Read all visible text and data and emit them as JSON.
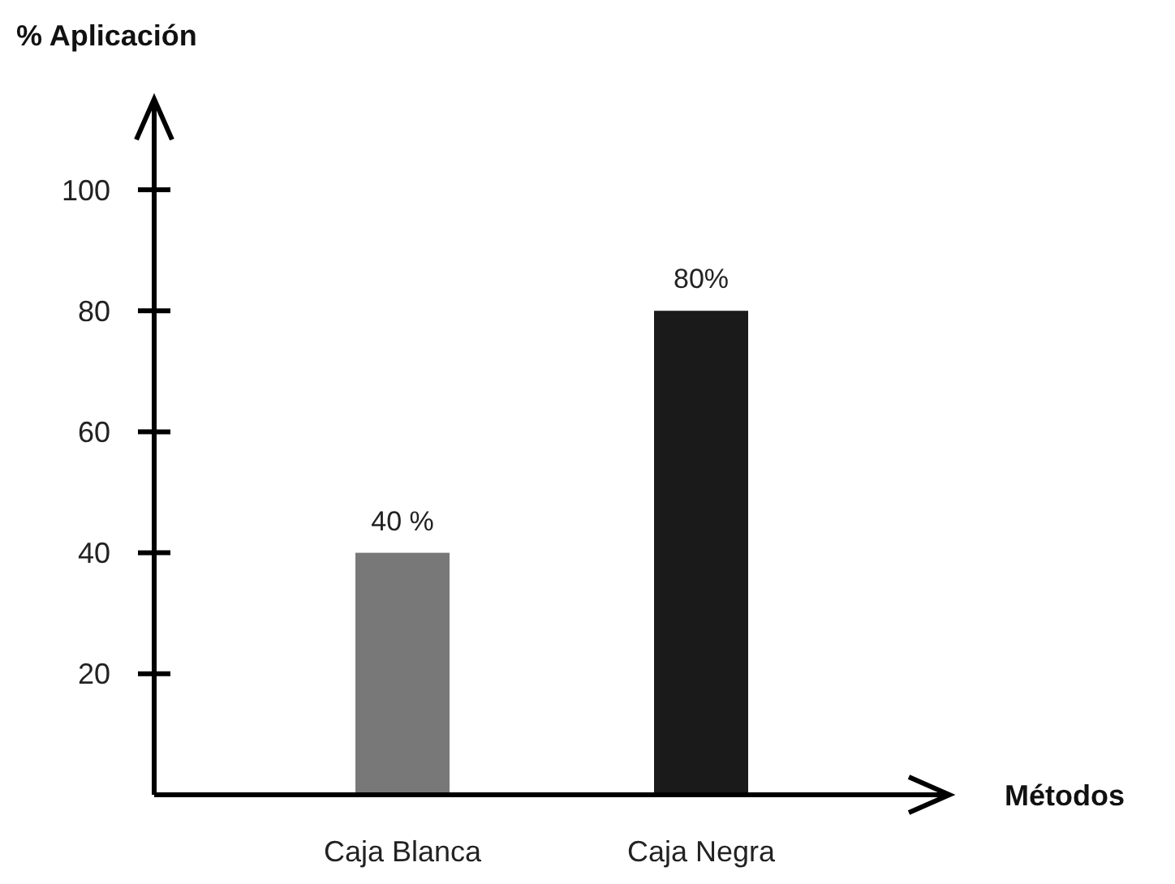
{
  "chart_data": {
    "type": "bar",
    "xlabel": "Métodos",
    "ylabel": "% Aplicación",
    "categories": [
      "Caja Blanca",
      "Caja Negra"
    ],
    "series": [
      {
        "values": [
          40,
          80
        ],
        "colors": [
          "#787878",
          "#1a1a1a"
        ],
        "value_labels": [
          "40 %",
          "80%"
        ]
      }
    ],
    "ylim": [
      0,
      115
    ],
    "yticks": [
      20,
      40,
      60,
      80,
      100
    ]
  }
}
